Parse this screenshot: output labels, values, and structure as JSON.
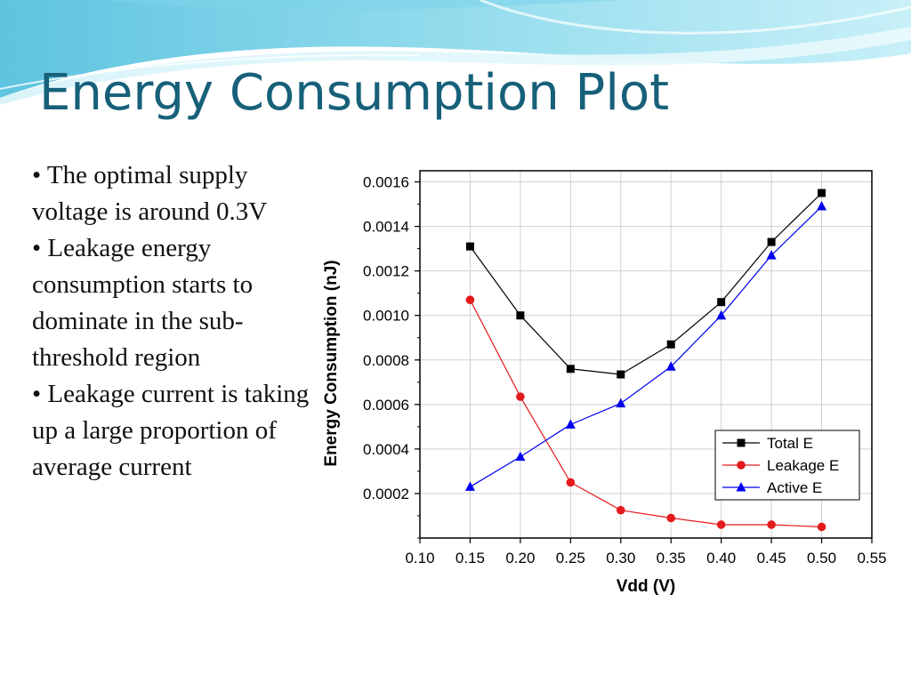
{
  "slide": {
    "title": "Energy Consumption Plot",
    "bullets": [
      "• The optimal supply voltage is around 0.3V",
      "• Leakage energy consumption starts to dominate in the sub-threshold region",
      "• Leakage current is taking up a large proportion of average current"
    ],
    "accent_color": "#17607a"
  },
  "chart_data": {
    "type": "line",
    "title": "",
    "xlabel": "Vdd (V)",
    "ylabel": "Energy Consumption (nJ)",
    "xlim": [
      0.1,
      0.55
    ],
    "ylim": [
      0.0,
      0.00165
    ],
    "x_ticks": [
      "0.10",
      "0.15",
      "0.20",
      "0.25",
      "0.30",
      "0.35",
      "0.40",
      "0.45",
      "0.50",
      "0.55"
    ],
    "y_ticks": [
      "0.0002",
      "0.0004",
      "0.0006",
      "0.0008",
      "0.0010",
      "0.0012",
      "0.0014",
      "0.0016"
    ],
    "grid": true,
    "legend_position": "bottom-right",
    "x": [
      0.15,
      0.2,
      0.25,
      0.3,
      0.35,
      0.4,
      0.45,
      0.5
    ],
    "series": [
      {
        "name": "Total E",
        "color": "#000000",
        "marker": "square",
        "values": [
          0.00131,
          0.001,
          0.00076,
          0.000735,
          0.00087,
          0.00106,
          0.00133,
          0.00155
        ]
      },
      {
        "name": "Leakage E",
        "color": "#e41a1c",
        "marker": "circle",
        "values": [
          0.00107,
          0.000635,
          0.00025,
          0.000125,
          9e-05,
          6e-05,
          6e-05,
          5e-05
        ]
      },
      {
        "name": "Active E",
        "color": "#0000ee",
        "marker": "triangle",
        "values": [
          0.00023,
          0.000365,
          0.00051,
          0.000605,
          0.00077,
          0.001,
          0.00127,
          0.00149
        ]
      }
    ]
  }
}
